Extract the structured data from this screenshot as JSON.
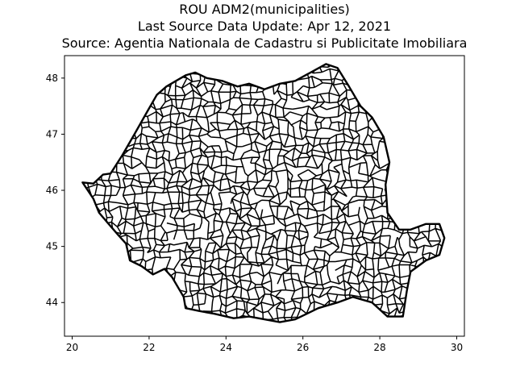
{
  "figure": {
    "title_lines": [
      "ROU ADM2(municipalities)",
      "Last Source Data Update: Apr 12, 2021",
      "Source: Agentia Nationala de Cadastru si Publicitate Imobiliara"
    ]
  },
  "chart_data": {
    "type": "map",
    "title": "ROU ADM2(municipalities)\nLast Source Data Update: Apr 12, 2021\nSource: Agentia Nationala de Cadastru si Publicitate Imobiliara",
    "xlabel": "",
    "ylabel": "",
    "xlim": [
      19.8,
      30.2
    ],
    "ylim": [
      43.4,
      48.4
    ],
    "xticks": [
      20,
      22,
      24,
      26,
      28,
      30
    ],
    "yticks": [
      44,
      45,
      46,
      47,
      48
    ],
    "grid": false,
    "stroke_color": "#000000",
    "fill_color": "#ffffff",
    "outline": [
      [
        20.27,
        46.14
      ],
      [
        20.55,
        46.12
      ],
      [
        20.8,
        46.28
      ],
      [
        21.0,
        46.3
      ],
      [
        21.3,
        46.62
      ],
      [
        21.62,
        47.0
      ],
      [
        21.95,
        47.4
      ],
      [
        22.2,
        47.7
      ],
      [
        22.45,
        47.85
      ],
      [
        22.7,
        47.95
      ],
      [
        22.95,
        48.05
      ],
      [
        23.2,
        48.1
      ],
      [
        23.5,
        48.0
      ],
      [
        23.9,
        47.95
      ],
      [
        24.3,
        47.85
      ],
      [
        24.6,
        47.9
      ],
      [
        25.0,
        47.8
      ],
      [
        25.4,
        47.9
      ],
      [
        25.8,
        47.95
      ],
      [
        26.2,
        48.1
      ],
      [
        26.6,
        48.25
      ],
      [
        26.9,
        48.18
      ],
      [
        27.2,
        47.85
      ],
      [
        27.5,
        47.5
      ],
      [
        27.8,
        47.3
      ],
      [
        28.1,
        46.95
      ],
      [
        28.25,
        46.5
      ],
      [
        28.15,
        46.1
      ],
      [
        28.2,
        45.6
      ],
      [
        28.5,
        45.3
      ],
      [
        28.8,
        45.3
      ],
      [
        29.2,
        45.4
      ],
      [
        29.55,
        45.4
      ],
      [
        29.68,
        45.15
      ],
      [
        29.55,
        44.85
      ],
      [
        29.2,
        44.75
      ],
      [
        28.8,
        44.55
      ],
      [
        28.7,
        44.2
      ],
      [
        28.6,
        43.75
      ],
      [
        28.2,
        43.75
      ],
      [
        27.8,
        44.0
      ],
      [
        27.3,
        44.1
      ],
      [
        26.9,
        44.0
      ],
      [
        26.4,
        43.9
      ],
      [
        25.8,
        43.7
      ],
      [
        25.4,
        43.65
      ],
      [
        25.0,
        43.7
      ],
      [
        24.6,
        43.75
      ],
      [
        24.2,
        43.72
      ],
      [
        23.7,
        43.8
      ],
      [
        23.3,
        43.85
      ],
      [
        22.95,
        43.9
      ],
      [
        22.9,
        44.1
      ],
      [
        22.6,
        44.45
      ],
      [
        22.4,
        44.6
      ],
      [
        22.1,
        44.5
      ],
      [
        21.8,
        44.65
      ],
      [
        21.5,
        44.75
      ],
      [
        21.4,
        45.05
      ],
      [
        21.2,
        45.2
      ],
      [
        20.95,
        45.4
      ],
      [
        20.7,
        45.6
      ],
      [
        20.55,
        45.85
      ],
      [
        20.27,
        46.14
      ]
    ],
    "outline_count": 64
  }
}
